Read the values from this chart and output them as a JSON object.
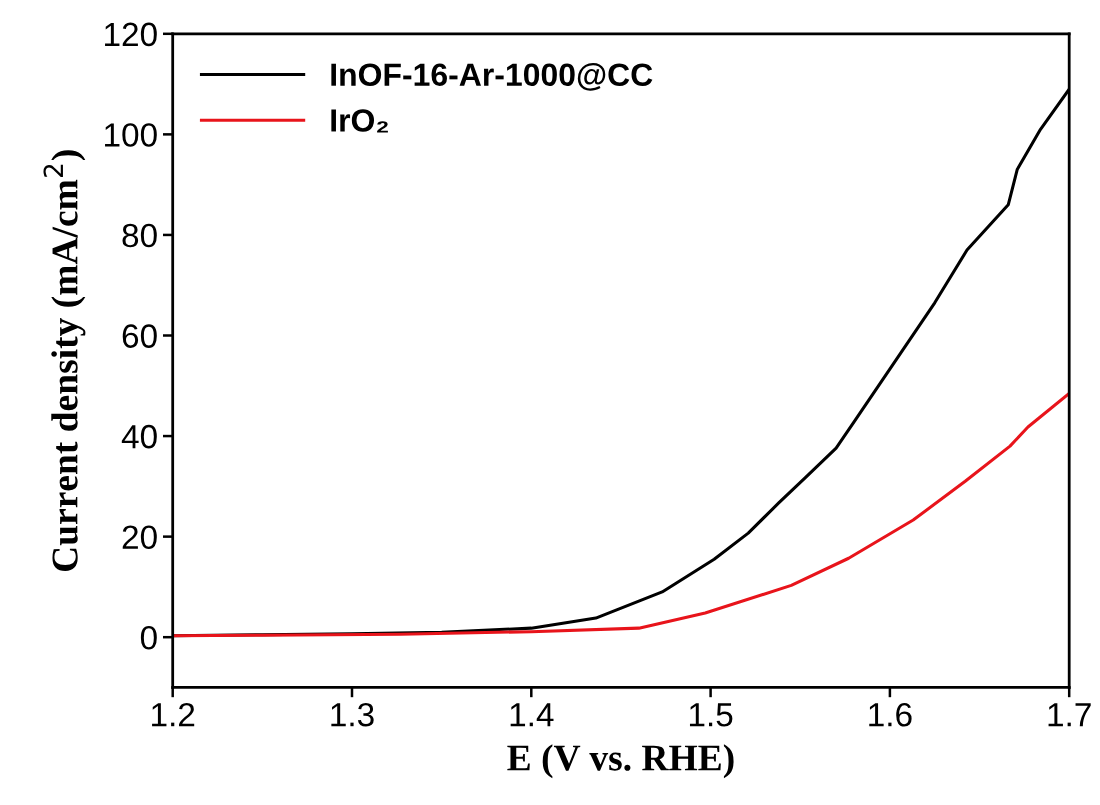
{
  "chart_data": {
    "type": "line",
    "xlabel": "E (V vs. RHE)",
    "ylabel": "Current density (mA/cm$^{2}$)",
    "xlim": [
      1.2,
      1.7
    ],
    "xticks": [
      1.2,
      1.3,
      1.4,
      1.5,
      1.6,
      1.7
    ],
    "ylim": [
      -10,
      120
    ],
    "yticks": [
      0,
      20,
      40,
      60,
      80,
      100,
      120
    ],
    "grid": false,
    "legend": "top left",
    "line_style": "solid",
    "marker": "none",
    "series": [
      {
        "name": "InOF-16-Ar-1000@CC",
        "color": "#000000",
        "x": [
          1.2,
          1.25,
          1.3,
          1.35,
          1.4,
          1.436,
          1.473,
          1.502,
          1.521,
          1.538,
          1.553,
          1.57,
          1.58,
          1.606,
          1.625,
          1.643,
          1.666,
          1.671,
          1.684,
          1.7
        ],
        "values": [
          0.3,
          0.5,
          0.7,
          1.0,
          1.8,
          3.8,
          9,
          15.5,
          20.7,
          26.7,
          31.8,
          37.6,
          42.8,
          56.5,
          66.5,
          77,
          86,
          93,
          101,
          109
        ]
      },
      {
        "name": "IrO₂",
        "color": "#e8141b",
        "x": [
          1.2,
          1.25,
          1.327,
          1.4,
          1.46,
          1.497,
          1.545,
          1.577,
          1.613,
          1.642,
          1.667,
          1.677,
          1.7
        ],
        "values": [
          0.3,
          0.4,
          0.6,
          1.1,
          1.8,
          4.8,
          10.3,
          15.7,
          23.3,
          31,
          38,
          41.8,
          48.5
        ]
      }
    ]
  }
}
